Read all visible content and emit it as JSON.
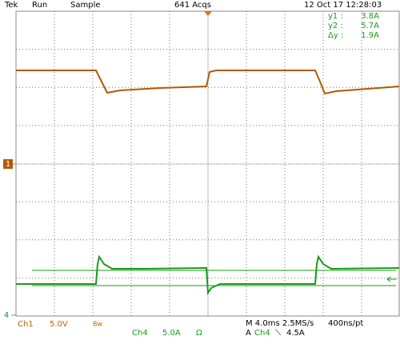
{
  "header": {
    "brand": "Tek",
    "state": "Run",
    "mode": "Sample",
    "acquisitions": "641 Acqs",
    "timestamp": "12 Oct 17 12:28:03"
  },
  "cursors": [
    {
      "label": "y1 :",
      "value": "3.8A"
    },
    {
      "label": "y2 :",
      "value": "5.7A"
    },
    {
      "label": "Δy :",
      "value": "1.9A"
    }
  ],
  "markers": {
    "ch1": "1",
    "ch4": "4"
  },
  "footer": {
    "ch1": {
      "name": "Ch1",
      "scale": "5.0V",
      "bandwidth": "Bw"
    },
    "ch4": {
      "name": "Ch4",
      "scale": "5.0A",
      "impedance": "Ω"
    },
    "timebase": "M 4.0ms 2.5MS/s",
    "resolution": "400ns/pt",
    "trigger": {
      "mode": "A",
      "source": "Ch4",
      "slope": "⟍",
      "level": "4.5A"
    }
  }
}
